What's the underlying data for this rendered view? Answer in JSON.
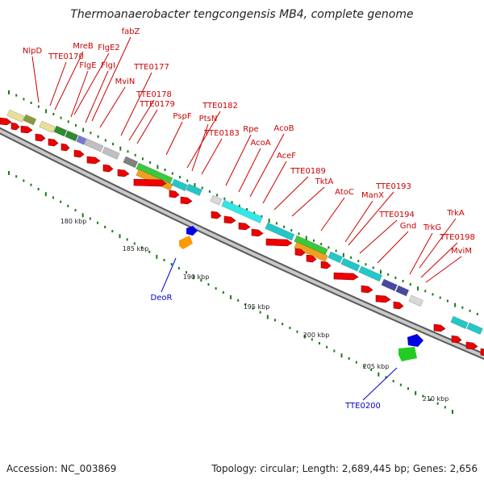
{
  "title": "Thermoanaerobacter tengcongensis MB4, complete genome",
  "footer": {
    "accession": "Accession: NC_003869",
    "info": "Topology: circular; Length: 2,689,445 bp; Genes: 2,656"
  },
  "colors": {
    "gene_forward": "#ee0000",
    "gene_reverse_label": "#0000cc",
    "gene_label": "#cc0000",
    "backbone": "#9a9a9a",
    "tick": "#1a7a1a"
  },
  "ruler_labels": [
    "180 kbp",
    "185 kbp",
    "190 kbp",
    "195 kbp",
    "200 kbp",
    "205 kbp",
    "210 kbp"
  ],
  "gene_labels": [
    "NlpD",
    "MreB",
    "fabZ",
    "FlgE2",
    "TTE0170",
    "FlgE",
    "FlgI",
    "MviN",
    "TTE0177",
    "TTE0178",
    "TTE0179",
    "PspF",
    "TTE0182",
    "PtsN",
    "TTE0183",
    "Rpe",
    "AcoB",
    "AcoA",
    "AceF",
    "TTE0189",
    "TktA",
    "AtoC",
    "ManX",
    "TTE0193",
    "TTE0194",
    "Gnd",
    "TrkA",
    "TrkG",
    "TTE0198",
    "MviM"
  ],
  "reverse_labels": [
    "DeoR",
    "TTE0200"
  ],
  "cog_colors": [
    "#e8df9a",
    "#8c9a3c",
    "#2e8b2e",
    "#7878d8",
    "#c0c0c0",
    "#808080",
    "#3cc83c",
    "#f0a020",
    "#22c8c8",
    "#30e8e8",
    "#4848a0",
    "#d8d8d8",
    "#0000e0",
    "#ff9900",
    "#22cc22"
  ]
}
